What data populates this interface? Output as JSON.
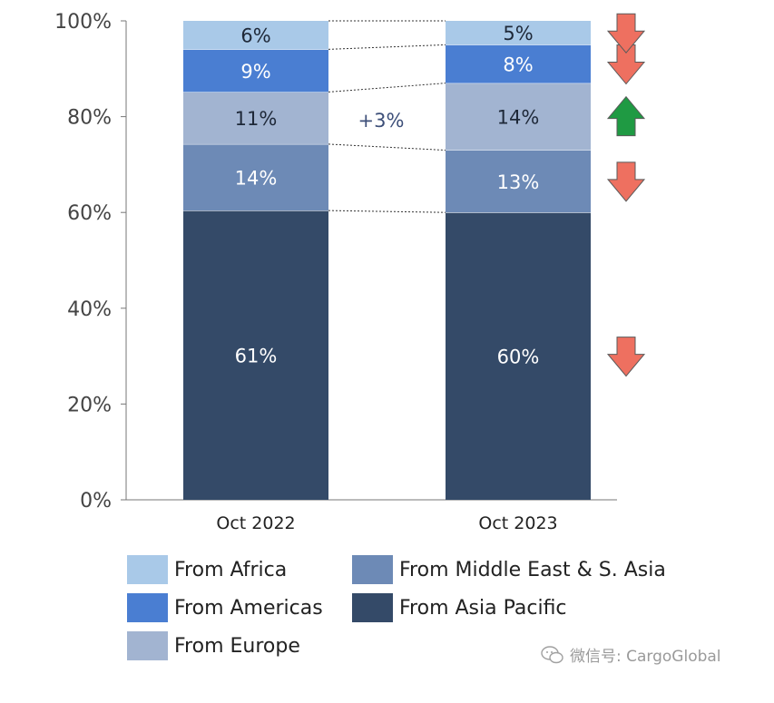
{
  "chart_data": {
    "type": "bar",
    "stacked": true,
    "categories": [
      "Oct 2022",
      "Oct 2023"
    ],
    "series": [
      {
        "name": "From Asia Pacific",
        "values": [
          61,
          60
        ],
        "labels": [
          "61%",
          "60%"
        ],
        "color": "#344a68",
        "label_color": "#ffffff",
        "trend": "down"
      },
      {
        "name": "From Middle East & S. Asia",
        "values": [
          14,
          13
        ],
        "labels": [
          "14%",
          "13%"
        ],
        "color": "#6d8ab6",
        "label_color": "#ffffff",
        "trend": "down"
      },
      {
        "name": "From Europe",
        "values": [
          11,
          14
        ],
        "labels": [
          "11%",
          "14%"
        ],
        "color": "#a2b4d1",
        "label_color": "#1e2838",
        "trend": "up"
      },
      {
        "name": "From Americas",
        "values": [
          9,
          8
        ],
        "labels": [
          "9%",
          "8%"
        ],
        "color": "#4a7ed2",
        "label_color": "#ffffff",
        "trend": "down"
      },
      {
        "name": "From Africa",
        "values": [
          6,
          5
        ],
        "labels": [
          "6%",
          "5%"
        ],
        "color": "#a9c9e8",
        "label_color": "#1e2838",
        "trend": "down"
      }
    ],
    "y_ticks": [
      "0%",
      "20%",
      "40%",
      "60%",
      "80%",
      "100%"
    ],
    "ylim": [
      0,
      100
    ],
    "annotation": "+3%",
    "annotation_color": "#3d4f79",
    "arrow_colors": {
      "up": "#1f9a43",
      "down": "#ee7060"
    },
    "legend_position": "bottom",
    "grid": false
  },
  "legend": {
    "items": [
      {
        "label": "From Africa",
        "color": "#a9c9e8"
      },
      {
        "label": "From Americas",
        "color": "#4a7ed2"
      },
      {
        "label": "From Europe",
        "color": "#a2b4d1"
      },
      {
        "label": "From Middle East & S. Asia",
        "color": "#6d8ab6"
      },
      {
        "label": "From Asia Pacific",
        "color": "#344a68"
      }
    ]
  },
  "watermark": {
    "text": "微信号: CargoGlobal",
    "icon": "wechat-icon"
  }
}
